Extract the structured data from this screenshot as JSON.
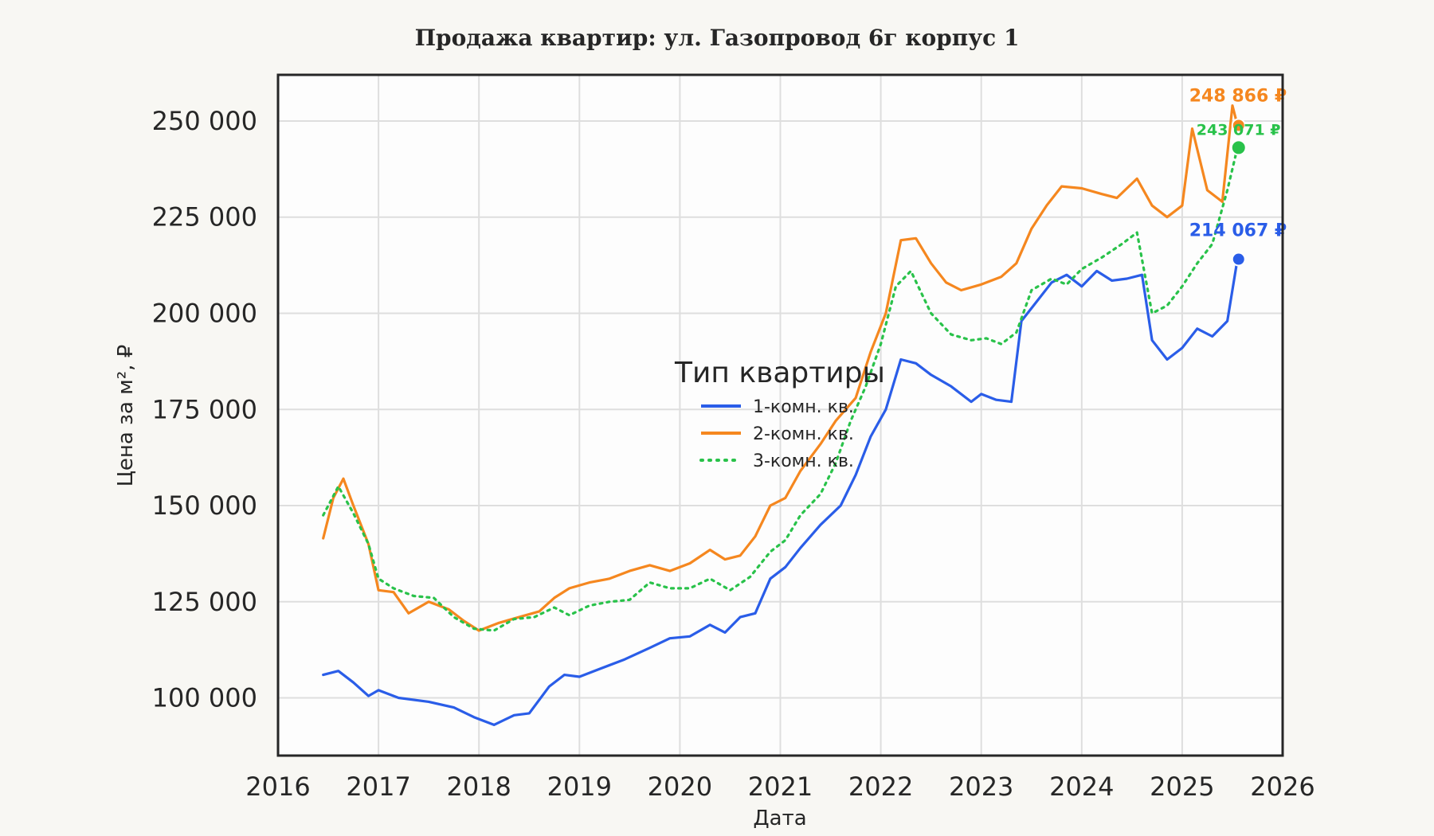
{
  "chart_data": {
    "type": "line",
    "title": "Продажа квартир: ул. Газопровод 6г корпус 1",
    "xlabel": "Дата",
    "ylabel": "Цена за м², ₽",
    "xlim": [
      2016,
      2026
    ],
    "ylim": [
      85000,
      262000
    ],
    "x_ticks": [
      "2016",
      "2017",
      "2018",
      "2019",
      "2020",
      "2021",
      "2022",
      "2023",
      "2024",
      "2025",
      "2026"
    ],
    "y_ticks": [
      "100 000",
      "125 000",
      "150 000",
      "175 000",
      "200 000",
      "225 000",
      "250 000"
    ],
    "grid": true,
    "legend": {
      "title": "Тип квартиры",
      "placement": "center"
    },
    "series": [
      {
        "name": "1-комн. кв.",
        "color": "#2a5de8",
        "style": "solid",
        "end_label": "214 067 ₽",
        "end_value": 214067,
        "points": [
          [
            2016.45,
            106000
          ],
          [
            2016.6,
            107000
          ],
          [
            2016.75,
            104000
          ],
          [
            2016.9,
            100500
          ],
          [
            2017.0,
            102000
          ],
          [
            2017.2,
            100000
          ],
          [
            2017.5,
            99000
          ],
          [
            2017.75,
            97500
          ],
          [
            2017.95,
            95000
          ],
          [
            2018.15,
            93000
          ],
          [
            2018.35,
            95500
          ],
          [
            2018.5,
            96000
          ],
          [
            2018.7,
            103000
          ],
          [
            2018.85,
            106000
          ],
          [
            2019.0,
            105500
          ],
          [
            2019.2,
            107500
          ],
          [
            2019.45,
            110000
          ],
          [
            2019.7,
            113000
          ],
          [
            2019.9,
            115500
          ],
          [
            2020.1,
            116000
          ],
          [
            2020.3,
            119000
          ],
          [
            2020.45,
            117000
          ],
          [
            2020.6,
            121000
          ],
          [
            2020.75,
            122000
          ],
          [
            2020.9,
            131000
          ],
          [
            2021.05,
            134000
          ],
          [
            2021.2,
            139000
          ],
          [
            2021.4,
            145000
          ],
          [
            2021.6,
            150000
          ],
          [
            2021.75,
            158000
          ],
          [
            2021.9,
            168000
          ],
          [
            2022.05,
            175000
          ],
          [
            2022.2,
            188000
          ],
          [
            2022.35,
            187000
          ],
          [
            2022.5,
            184000
          ],
          [
            2022.7,
            181000
          ],
          [
            2022.9,
            177000
          ],
          [
            2023.0,
            179000
          ],
          [
            2023.15,
            177500
          ],
          [
            2023.3,
            177000
          ],
          [
            2023.4,
            198000
          ],
          [
            2023.55,
            203000
          ],
          [
            2023.7,
            208000
          ],
          [
            2023.85,
            210000
          ],
          [
            2024.0,
            207000
          ],
          [
            2024.15,
            211000
          ],
          [
            2024.3,
            208500
          ],
          [
            2024.45,
            209000
          ],
          [
            2024.6,
            210000
          ],
          [
            2024.7,
            193000
          ],
          [
            2024.85,
            188000
          ],
          [
            2025.0,
            191000
          ],
          [
            2025.15,
            196000
          ],
          [
            2025.3,
            194000
          ],
          [
            2025.45,
            198000
          ],
          [
            2025.55,
            214067
          ]
        ]
      },
      {
        "name": "2-комн. кв.",
        "color": "#f5871f",
        "style": "solid",
        "end_label": "248 866 ₽",
        "end_value": 248866,
        "points": [
          [
            2016.45,
            141500
          ],
          [
            2016.55,
            152000
          ],
          [
            2016.65,
            157000
          ],
          [
            2016.75,
            150000
          ],
          [
            2016.9,
            140000
          ],
          [
            2017.0,
            128000
          ],
          [
            2017.15,
            127500
          ],
          [
            2017.3,
            122000
          ],
          [
            2017.5,
            125000
          ],
          [
            2017.7,
            123000
          ],
          [
            2017.85,
            120000
          ],
          [
            2018.0,
            117500
          ],
          [
            2018.2,
            119500
          ],
          [
            2018.4,
            121000
          ],
          [
            2018.6,
            122500
          ],
          [
            2018.75,
            126000
          ],
          [
            2018.9,
            128500
          ],
          [
            2019.1,
            130000
          ],
          [
            2019.3,
            131000
          ],
          [
            2019.5,
            133000
          ],
          [
            2019.7,
            134500
          ],
          [
            2019.9,
            133000
          ],
          [
            2020.1,
            135000
          ],
          [
            2020.3,
            138500
          ],
          [
            2020.45,
            136000
          ],
          [
            2020.6,
            137000
          ],
          [
            2020.75,
            142000
          ],
          [
            2020.9,
            150000
          ],
          [
            2021.05,
            152000
          ],
          [
            2021.2,
            159000
          ],
          [
            2021.4,
            166000
          ],
          [
            2021.55,
            172000
          ],
          [
            2021.75,
            178000
          ],
          [
            2021.9,
            190000
          ],
          [
            2022.05,
            200000
          ],
          [
            2022.2,
            219000
          ],
          [
            2022.35,
            219500
          ],
          [
            2022.5,
            213000
          ],
          [
            2022.65,
            208000
          ],
          [
            2022.8,
            206000
          ],
          [
            2023.0,
            207500
          ],
          [
            2023.2,
            209500
          ],
          [
            2023.35,
            213000
          ],
          [
            2023.5,
            222000
          ],
          [
            2023.65,
            228000
          ],
          [
            2023.8,
            233000
          ],
          [
            2024.0,
            232500
          ],
          [
            2024.2,
            231000
          ],
          [
            2024.35,
            230000
          ],
          [
            2024.55,
            235000
          ],
          [
            2024.7,
            228000
          ],
          [
            2024.85,
            225000
          ],
          [
            2025.0,
            228000
          ],
          [
            2025.1,
            248000
          ],
          [
            2025.25,
            232000
          ],
          [
            2025.4,
            229000
          ],
          [
            2025.5,
            254000
          ],
          [
            2025.55,
            248866
          ]
        ]
      },
      {
        "name": "3-комн. кв.",
        "color": "#29c24a",
        "style": "dotted",
        "end_label": "243 071 ₽",
        "end_value": 243071,
        "points": [
          [
            2016.45,
            147500
          ],
          [
            2016.6,
            155000
          ],
          [
            2016.75,
            148000
          ],
          [
            2016.9,
            140000
          ],
          [
            2017.0,
            131000
          ],
          [
            2017.15,
            128500
          ],
          [
            2017.35,
            126500
          ],
          [
            2017.55,
            126000
          ],
          [
            2017.75,
            121000
          ],
          [
            2017.95,
            118000
          ],
          [
            2018.15,
            117500
          ],
          [
            2018.35,
            120500
          ],
          [
            2018.55,
            121000
          ],
          [
            2018.75,
            123500
          ],
          [
            2018.9,
            121500
          ],
          [
            2019.1,
            124000
          ],
          [
            2019.3,
            125000
          ],
          [
            2019.5,
            125500
          ],
          [
            2019.7,
            130000
          ],
          [
            2019.9,
            128500
          ],
          [
            2020.1,
            128500
          ],
          [
            2020.3,
            131000
          ],
          [
            2020.5,
            128000
          ],
          [
            2020.7,
            131500
          ],
          [
            2020.9,
            138000
          ],
          [
            2021.05,
            141000
          ],
          [
            2021.2,
            147500
          ],
          [
            2021.4,
            153000
          ],
          [
            2021.55,
            161000
          ],
          [
            2021.7,
            172000
          ],
          [
            2021.85,
            181000
          ],
          [
            2022.0,
            192000
          ],
          [
            2022.15,
            207000
          ],
          [
            2022.3,
            211000
          ],
          [
            2022.5,
            200000
          ],
          [
            2022.7,
            194500
          ],
          [
            2022.9,
            193000
          ],
          [
            2023.05,
            193500
          ],
          [
            2023.2,
            192000
          ],
          [
            2023.35,
            195000
          ],
          [
            2023.5,
            206000
          ],
          [
            2023.7,
            209000
          ],
          [
            2023.85,
            207500
          ],
          [
            2024.0,
            211500
          ],
          [
            2024.2,
            214500
          ],
          [
            2024.4,
            218000
          ],
          [
            2024.55,
            221000
          ],
          [
            2024.7,
            200000
          ],
          [
            2024.85,
            202000
          ],
          [
            2025.0,
            207000
          ],
          [
            2025.15,
            213000
          ],
          [
            2025.3,
            218000
          ],
          [
            2025.45,
            232000
          ],
          [
            2025.55,
            243071
          ]
        ]
      }
    ]
  }
}
